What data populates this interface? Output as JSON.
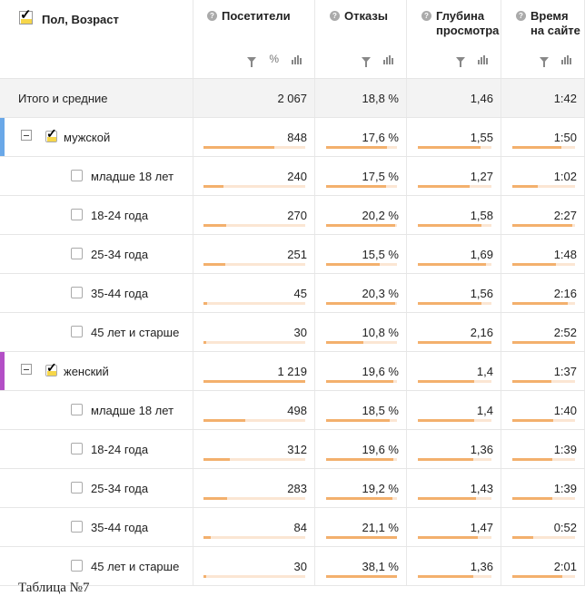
{
  "header": {
    "group_title": "Пол, Возраст",
    "columns": [
      {
        "key": "visitors",
        "lines": [
          "Посетители"
        ]
      },
      {
        "key": "bounce",
        "lines": [
          "Отказы"
        ]
      },
      {
        "key": "depth",
        "lines": [
          "Глубина",
          "просмотра"
        ]
      },
      {
        "key": "time",
        "lines": [
          "Время",
          "на сайте"
        ]
      }
    ],
    "percent_icon": "%"
  },
  "icons": {
    "help": "question-icon",
    "filter": "filter-icon",
    "chart": "bar-chart-icon",
    "checkbox": "checkbox-checked-icon",
    "collapse": "minus-box-icon"
  },
  "colors": {
    "male_accent": "#6aa8e8",
    "female_accent": "#b34fc6",
    "bar_fill": "#f3b06d",
    "bar_track": "#fbe6d3"
  },
  "rows": [
    {
      "type": "total",
      "label": "Итого и средние",
      "visitors": "2 067",
      "bounce": "18,8 %",
      "depth": "1,46",
      "time": "1:42",
      "bars": null
    },
    {
      "type": "group",
      "accent": "male",
      "label": "мужской",
      "checked": true,
      "visitors": "848",
      "bounce": "17,6 %",
      "depth": "1,55",
      "time": "1:50",
      "bars": [
        0.7,
        0.86,
        0.85,
        0.78
      ]
    },
    {
      "type": "child",
      "label": "младше 18 лет",
      "visitors": "240",
      "bounce": "17,5 %",
      "depth": "1,27",
      "time": "1:02",
      "bars": [
        0.2,
        0.85,
        0.7,
        0.4
      ]
    },
    {
      "type": "child",
      "label": "18-24 года",
      "visitors": "270",
      "bounce": "20,2 %",
      "depth": "1,58",
      "time": "2:27",
      "bars": [
        0.22,
        0.98,
        0.87,
        0.95
      ]
    },
    {
      "type": "child",
      "label": "25-34 года",
      "visitors": "251",
      "bounce": "15,5 %",
      "depth": "1,69",
      "time": "1:48",
      "bars": [
        0.21,
        0.75,
        0.93,
        0.7
      ]
    },
    {
      "type": "child",
      "label": "35-44 года",
      "visitors": "45",
      "bounce": "20,3 %",
      "depth": "1,56",
      "time": "2:16",
      "bars": [
        0.04,
        0.98,
        0.86,
        0.88
      ]
    },
    {
      "type": "child",
      "label": "45 лет и старше",
      "visitors": "30",
      "bounce": "10,8 %",
      "depth": "2,16",
      "time": "2:52",
      "bars": [
        0.03,
        0.52,
        1.0,
        1.0
      ]
    },
    {
      "type": "group",
      "accent": "female",
      "label": "женский",
      "checked": true,
      "visitors": "1 219",
      "bounce": "19,6 %",
      "depth": "1,4",
      "time": "1:37",
      "bars": [
        1.0,
        0.95,
        0.77,
        0.63
      ]
    },
    {
      "type": "child",
      "label": "младше 18 лет",
      "visitors": "498",
      "bounce": "18,5 %",
      "depth": "1,4",
      "time": "1:40",
      "bars": [
        0.41,
        0.9,
        0.77,
        0.65
      ]
    },
    {
      "type": "child",
      "label": "18-24 года",
      "visitors": "312",
      "bounce": "19,6 %",
      "depth": "1,36",
      "time": "1:39",
      "bars": [
        0.26,
        0.95,
        0.75,
        0.64
      ]
    },
    {
      "type": "child",
      "label": "25-34 года",
      "visitors": "283",
      "bounce": "19,2 %",
      "depth": "1,43",
      "time": "1:39",
      "bars": [
        0.23,
        0.93,
        0.79,
        0.64
      ]
    },
    {
      "type": "child",
      "label": "35-44 года",
      "visitors": "84",
      "bounce": "21,1 %",
      "depth": "1,47",
      "time": "0:52",
      "bars": [
        0.07,
        1.0,
        0.81,
        0.34
      ]
    },
    {
      "type": "child",
      "label": "45 лет и старше",
      "visitors": "30",
      "bounce": "38,1 %",
      "depth": "1,36",
      "time": "2:01",
      "bars": [
        0.03,
        1.0,
        0.75,
        0.79
      ]
    }
  ],
  "caption": "Таблица №7"
}
